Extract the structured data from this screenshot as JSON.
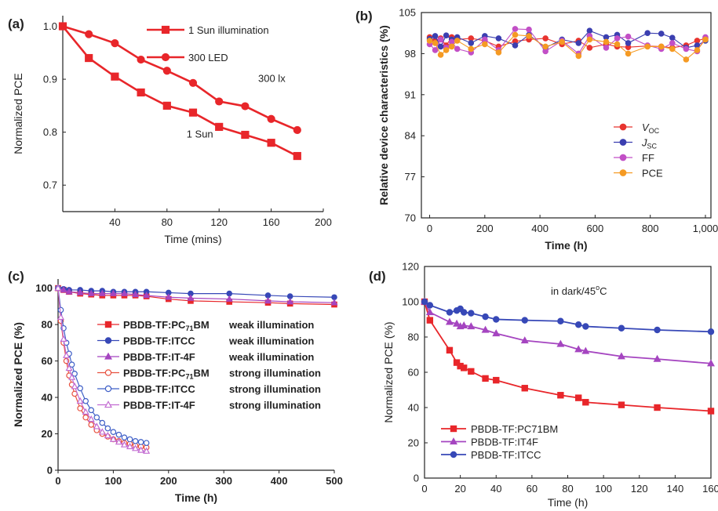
{
  "chart_data": [
    {
      "panel": "(a)",
      "type": "line",
      "xlabel": "Time (mins)",
      "ylabel": "Normalized PCE",
      "xlim": [
        0,
        200
      ],
      "ylim": [
        0.65,
        1.02
      ],
      "xticks": [
        40,
        80,
        120,
        160,
        200
      ],
      "yticks": [
        0.7,
        0.8,
        0.9,
        1.0
      ],
      "ytick_labels": [
        "0.7",
        "0.8",
        "0.9",
        "1.0"
      ],
      "legend_position": "top-center",
      "colors": {
        "line": "#e8262a"
      },
      "annotations": [
        {
          "text": "300 lx",
          "x": 150,
          "y": 0.895
        },
        {
          "text": "1 Sun",
          "x": 95,
          "y": 0.79
        }
      ],
      "series": [
        {
          "name": "1 Sun illumination",
          "marker": "square",
          "color": "#e8262a",
          "x": [
            0,
            20,
            40,
            60,
            80,
            100,
            120,
            140,
            160,
            180
          ],
          "y": [
            1.0,
            0.94,
            0.905,
            0.875,
            0.85,
            0.837,
            0.81,
            0.795,
            0.78,
            0.755
          ]
        },
        {
          "name": "300 LED",
          "marker": "circle",
          "color": "#e8262a",
          "x": [
            0,
            20,
            40,
            60,
            80,
            100,
            120,
            140,
            160,
            180
          ],
          "y": [
            1.0,
            0.985,
            0.968,
            0.937,
            0.916,
            0.893,
            0.858,
            0.849,
            0.825,
            0.804
          ]
        }
      ]
    },
    {
      "panel": "(b)",
      "type": "line",
      "xlabel": "Time (h)",
      "ylabel": "Relative device characteristics (%)",
      "xlim": [
        -30,
        1020
      ],
      "ylim": [
        70,
        105
      ],
      "xticks": [
        0,
        200,
        400,
        600,
        800,
        1000
      ],
      "xtick_labels": [
        "0",
        "200",
        "400",
        "600",
        "800",
        "1,000"
      ],
      "yticks": [
        70,
        77,
        84,
        91,
        98,
        105
      ],
      "legend_position": "center-right",
      "series": [
        {
          "name": "V_OC",
          "color": "#e8342f",
          "x": [
            0,
            20,
            40,
            60,
            80,
            100,
            150,
            200,
            250,
            310,
            360,
            420,
            480,
            540,
            580,
            640,
            680,
            720,
            790,
            840,
            880,
            930,
            970,
            1000
          ],
          "y": [
            100.8,
            100.2,
            100.6,
            99.4,
            100.8,
            100.4,
            100.6,
            100.2,
            99.2,
            100.1,
            100.4,
            100.6,
            99.6,
            100.2,
            99.0,
            99.6,
            99.2,
            99.1,
            99.3,
            99.2,
            99.0,
            99.4,
            100.2,
            100.6
          ]
        },
        {
          "name": "J_SC",
          "color": "#3b3fb0",
          "x": [
            0,
            20,
            40,
            60,
            80,
            100,
            150,
            200,
            250,
            310,
            360,
            420,
            480,
            540,
            580,
            640,
            680,
            720,
            790,
            840,
            880,
            930,
            970,
            1000
          ],
          "y": [
            100.5,
            101.0,
            99.2,
            101.1,
            100.4,
            100.8,
            99.8,
            101.0,
            100.6,
            99.4,
            101.2,
            99.0,
            100.4,
            99.8,
            101.9,
            100.8,
            101.2,
            99.8,
            101.5,
            101.4,
            100.7,
            99.0,
            99.4,
            100.2
          ]
        },
        {
          "name": "FF",
          "color": "#c24fc6",
          "x": [
            0,
            20,
            40,
            60,
            80,
            100,
            150,
            200,
            250,
            310,
            360,
            420,
            480,
            540,
            580,
            640,
            680,
            720,
            790,
            840,
            880,
            930,
            970,
            1000
          ],
          "y": [
            99.6,
            98.6,
            100.4,
            99.0,
            100.0,
            98.8,
            98.2,
            100.4,
            98.6,
            102.2,
            102.1,
            98.4,
            100.2,
            98.0,
            101.0,
            99.0,
            100.6,
            100.9,
            99.4,
            98.8,
            99.8,
            98.8,
            98.4,
            100.8
          ]
        },
        {
          "name": "PCE",
          "color": "#f59a23",
          "x": [
            0,
            20,
            40,
            60,
            80,
            100,
            150,
            200,
            250,
            310,
            360,
            420,
            480,
            540,
            580,
            640,
            680,
            720,
            790,
            840,
            880,
            930,
            970,
            1000
          ],
          "y": [
            100.2,
            99.8,
            97.8,
            98.6,
            99.2,
            100.2,
            98.8,
            99.6,
            98.2,
            101.2,
            101.0,
            99.2,
            100.0,
            97.6,
            100.4,
            100.0,
            99.6,
            98.0,
            99.2,
            99.2,
            98.8,
            97.0,
            98.6,
            100.4
          ]
        }
      ]
    },
    {
      "panel": "(c)",
      "type": "line",
      "xlabel": "Time (h)",
      "ylabel": "Normalized PCE (%)",
      "xlim": [
        0,
        500
      ],
      "ylim": [
        0,
        105
      ],
      "xticks": [
        0,
        100,
        200,
        300,
        400,
        500
      ],
      "yticks": [
        0,
        20,
        40,
        60,
        80,
        100
      ],
      "legend_position": "center",
      "series": [
        {
          "name": "PBDB-TF:PC71BM",
          "name_main": "PBDB-TF:PC",
          "name_sub": "71",
          "name_tail": "BM",
          "condition": "weak illumination",
          "color": "#e8262a",
          "marker": "square",
          "filled": true,
          "x": [
            0,
            10,
            20,
            40,
            60,
            80,
            100,
            120,
            140,
            160,
            200,
            240,
            310,
            380,
            420,
            500
          ],
          "y": [
            100,
            99,
            98,
            97,
            96.5,
            96,
            96,
            96,
            96,
            95.5,
            94,
            93,
            92.5,
            92,
            91.5,
            91
          ]
        },
        {
          "name": "PBDB-TF:ITCC",
          "name_main": "PBDB-TF:ITCC",
          "condition": "weak illumination",
          "color": "#3748b7",
          "marker": "circle",
          "filled": true,
          "x": [
            0,
            10,
            20,
            40,
            60,
            80,
            100,
            120,
            140,
            160,
            200,
            240,
            310,
            380,
            420,
            500
          ],
          "y": [
            100,
            99.5,
            99,
            99,
            98.5,
            98.5,
            98,
            98,
            98,
            98,
            97.5,
            97,
            97,
            96,
            95.5,
            95
          ]
        },
        {
          "name": "PBDB-TF:IT-4F",
          "name_main": "PBDB-TF:IT-4F",
          "condition": "weak illumination",
          "color": "#a545c0",
          "marker": "triangle",
          "filled": true,
          "x": [
            0,
            10,
            20,
            40,
            60,
            80,
            100,
            120,
            140,
            160,
            200,
            240,
            310,
            380,
            420,
            500
          ],
          "y": [
            100,
            99,
            98,
            97.5,
            97,
            97,
            97,
            97,
            96.5,
            96,
            95,
            94.5,
            94,
            93,
            92.5,
            92
          ]
        },
        {
          "name": "PBDB-TF:PC71BM",
          "name_main": "PBDB-TF:PC",
          "name_sub": "71",
          "name_tail": "BM",
          "condition": "strong illumination",
          "color": "#e8513f",
          "marker": "circle",
          "filled": false,
          "x": [
            0,
            5,
            10,
            15,
            20,
            25,
            30,
            40,
            50,
            60,
            70,
            80,
            90,
            100,
            110,
            120,
            130,
            140,
            150,
            160
          ],
          "y": [
            100,
            82,
            70,
            60,
            52,
            47,
            42,
            34,
            29,
            25,
            22,
            20,
            18.5,
            17,
            16,
            15,
            14.5,
            13.5,
            13,
            12.5
          ]
        },
        {
          "name": "PBDB-TF:ITCC",
          "name_main": "PBDB-TF:ITCC",
          "condition": "strong illumination",
          "color": "#3f5fc7",
          "marker": "circle",
          "filled": false,
          "x": [
            0,
            5,
            10,
            15,
            20,
            25,
            30,
            40,
            50,
            60,
            70,
            80,
            90,
            100,
            110,
            120,
            130,
            140,
            150,
            160
          ],
          "y": [
            100,
            88,
            78,
            70,
            64,
            58,
            53,
            45,
            38,
            33,
            29,
            26,
            23,
            21,
            19.5,
            18,
            17,
            16,
            15.5,
            15
          ]
        },
        {
          "name": "PBDB-TF:IT-4F",
          "name_main": "PBDB-TF:IT-4F",
          "condition": "strong illumination",
          "color": "#c26bd1",
          "marker": "triangle",
          "filled": false,
          "x": [
            0,
            5,
            10,
            15,
            20,
            25,
            30,
            40,
            50,
            60,
            70,
            80,
            90,
            100,
            110,
            120,
            130,
            140,
            150,
            160
          ],
          "y": [
            100,
            84,
            72,
            63,
            56,
            51,
            46,
            38,
            32,
            28,
            24,
            21,
            19,
            17,
            15.5,
            14,
            13,
            12,
            11,
            10.5
          ]
        }
      ]
    },
    {
      "panel": "(d)",
      "type": "line",
      "xlabel": "Time (h)",
      "ylabel": "Normalized PCE (%)",
      "xlim": [
        0,
        160
      ],
      "ylim": [
        0,
        120
      ],
      "xticks": [
        0,
        20,
        40,
        60,
        80,
        100,
        120,
        140,
        160
      ],
      "yticks": [
        0,
        20,
        40,
        60,
        80,
        100,
        120
      ],
      "legend_position": "bottom-left",
      "annotation": {
        "main": "in dark/45",
        "sup": "o",
        "tail": "C"
      },
      "series": [
        {
          "name": "PBDB-TF:PC71BM",
          "color": "#e8262a",
          "marker": "square",
          "x": [
            0,
            3,
            14,
            18,
            20,
            22,
            26,
            34,
            40,
            56,
            76,
            86,
            90,
            110,
            130,
            160
          ],
          "y": [
            100,
            89.5,
            72.5,
            65.5,
            63.5,
            62.5,
            60.5,
            56.5,
            55.5,
            51,
            47,
            45.5,
            43,
            41.5,
            40,
            38
          ]
        },
        {
          "name": "PBDB-TF:IT4F",
          "color": "#a545c0",
          "marker": "triangle",
          "x": [
            0,
            3,
            14,
            18,
            20,
            22,
            26,
            34,
            40,
            56,
            76,
            86,
            90,
            110,
            130,
            160
          ],
          "y": [
            100,
            94,
            88.5,
            87.5,
            86,
            86.5,
            86,
            84,
            82,
            78,
            76,
            73,
            72,
            69,
            67.5,
            65
          ]
        },
        {
          "name": "PBDB-TF:ITCC",
          "color": "#3748b7",
          "marker": "circle",
          "x": [
            0,
            3,
            14,
            18,
            20,
            22,
            26,
            34,
            40,
            56,
            76,
            86,
            90,
            110,
            130,
            160
          ],
          "y": [
            100,
            98,
            94,
            95,
            96,
            94,
            93.5,
            91.5,
            90,
            89.5,
            89,
            87,
            86,
            85,
            84,
            83
          ]
        }
      ]
    }
  ]
}
